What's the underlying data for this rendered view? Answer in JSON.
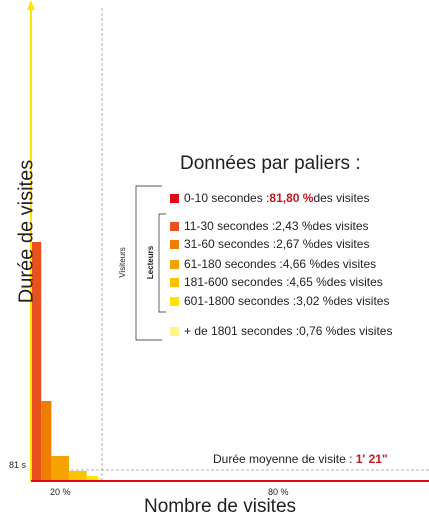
{
  "chart_data": {
    "type": "bar",
    "xlabel": "Nombre de visites",
    "ylabel": "Durée de visites",
    "x_ticks": [
      "20 %",
      "80 %"
    ],
    "y_ticks": [
      "81 s"
    ],
    "series": [
      {
        "category": "0-10 secondes",
        "share_pct": 81.8,
        "color": "#e30613"
      },
      {
        "category": "11-30 secondes",
        "share_pct": 2.43,
        "color": "#e8501d"
      },
      {
        "category": "31-60 secondes",
        "share_pct": 2.67,
        "color": "#ef7d00"
      },
      {
        "category": "61-180 secondes",
        "share_pct": 4.66,
        "color": "#f5a300"
      },
      {
        "category": "181-600 secondes",
        "share_pct": 4.65,
        "color": "#fcc200"
      },
      {
        "category": "601-1800 secondes",
        "share_pct": 3.02,
        "color": "#ffe500"
      },
      {
        "category": "+ de 1801 secondes",
        "share_pct": 0.76,
        "color": "#fff38a"
      }
    ],
    "average_visit_duration": "1' 21\""
  },
  "panel": {
    "title": "Données par paliers :",
    "group_outer": "Visiteurs",
    "group_inner": "Lecteurs",
    "items": [
      {
        "pre": "0-10 secondes : ",
        "pct": "81,80 %",
        "post": " des visites",
        "highlight": true
      },
      {
        "pre": "11-30 secondes : ",
        "pct": "2,43 %",
        "post": " des visites",
        "highlight": false
      },
      {
        "pre": "31-60 secondes : ",
        "pct": "2,67 %",
        "post": " des visites",
        "highlight": false
      },
      {
        "pre": "61-180 secondes : ",
        "pct": "4,66 %",
        "post": " des visites",
        "highlight": false
      },
      {
        "pre": "181-600 secondes : ",
        "pct": "4,65 %",
        "post": " des visites",
        "highlight": false
      },
      {
        "pre": "601-1800 secondes : ",
        "pct": "3,02 %",
        "post": " des visites",
        "highlight": false
      },
      {
        "pre": "+ de 1801 secondes : ",
        "pct": "0,76 %",
        "post": " des visites",
        "highlight": false
      }
    ]
  },
  "average": {
    "label": "Durée moyenne de visite : ",
    "value": "1' 21\""
  },
  "colors": {
    "axis_yellow": "#ffe500",
    "avg_line": "#e30613",
    "dashed": "#9d9d9c"
  }
}
